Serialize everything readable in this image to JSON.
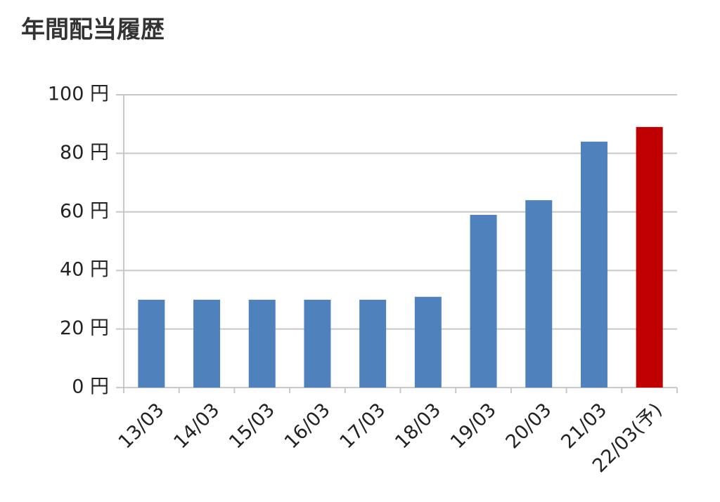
{
  "chart_data": {
    "type": "bar",
    "title": "年間配当履歴",
    "categories": [
      "13/03",
      "14/03",
      "15/03",
      "16/03",
      "17/03",
      "18/03",
      "19/03",
      "20/03",
      "21/03",
      "22/03(予)"
    ],
    "values": [
      30,
      30,
      30,
      30,
      30,
      31,
      59,
      64,
      84,
      89
    ],
    "colors": [
      "#4f81bd",
      "#4f81bd",
      "#4f81bd",
      "#4f81bd",
      "#4f81bd",
      "#4f81bd",
      "#4f81bd",
      "#4f81bd",
      "#4f81bd",
      "#c00000"
    ],
    "ylim": [
      0,
      100
    ],
    "yticks": [
      {
        "value": 0,
        "label": "0 円"
      },
      {
        "value": 20,
        "label": "20 円"
      },
      {
        "value": 40,
        "label": "40 円"
      },
      {
        "value": 60,
        "label": "60 円"
      },
      {
        "value": 80,
        "label": "80 円"
      },
      {
        "value": 100,
        "label": "100 円"
      }
    ],
    "grid": true
  }
}
